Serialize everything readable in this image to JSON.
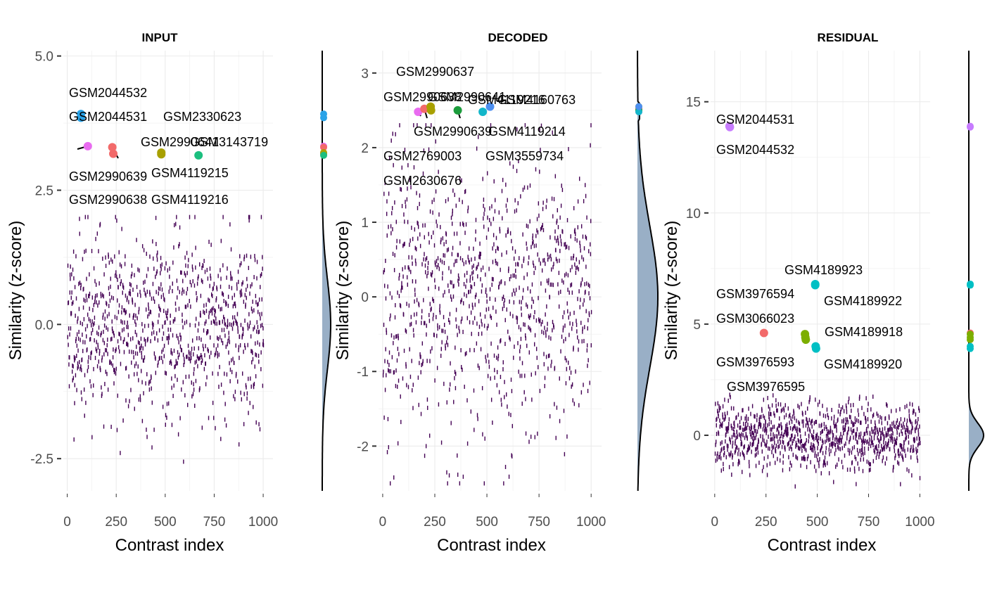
{
  "chart_data": [
    {
      "type": "scatter",
      "title": "INPUT",
      "xlabel": "Contrast index",
      "ylabel": "Similarity (z-score)",
      "xlim": [
        -20,
        1050
      ],
      "ylim": [
        -3.1,
        5.1
      ],
      "x_ticks": [
        0,
        250,
        500,
        750,
        1000
      ],
      "x_tick_labels": [
        "0",
        "250",
        "500",
        "750",
        "1000"
      ],
      "y_ticks": [
        -2.5,
        0,
        2.5,
        5
      ],
      "y_tick_labels": [
        "-2.5",
        "0.0",
        "2.5",
        "5.0"
      ],
      "grid": true,
      "background": {
        "n": 1000,
        "seed": 11,
        "ymean": 0.0,
        "ysd": 0.85,
        "ymin": -2.7,
        "ymax": 2.0,
        "color": "#440154"
      },
      "highlights": [
        {
          "x": 70,
          "y": 3.85,
          "color": "#2aa3e8",
          "label": "GSM2044532"
        },
        {
          "x": 70,
          "y": 3.92,
          "color": "#2aa3e8",
          "label": "GSM2044531"
        },
        {
          "x": 105,
          "y": 3.32,
          "color": "#e96bf0",
          "label": "GSM2330623"
        },
        {
          "x": 230,
          "y": 3.3,
          "color": "#f26a6a",
          "label": "GSM2990638"
        },
        {
          "x": 235,
          "y": 3.18,
          "color": "#f26a6a",
          "label": "GSM2990639"
        },
        {
          "x": 480,
          "y": 3.2,
          "color": "#a8a000",
          "label": "GSM4119216"
        },
        {
          "x": 480,
          "y": 3.17,
          "color": "#a8a000",
          "label": "GSM4119215"
        },
        {
          "x": 670,
          "y": 3.15,
          "color": "#1cbf7f",
          "label": "GSM3143719"
        }
      ],
      "extra_labels": [
        "GSM2990641"
      ],
      "density": {
        "mean": 0.0,
        "sd": 0.85
      }
    },
    {
      "type": "scatter",
      "title": "DECODED",
      "xlabel": "Contrast index",
      "ylabel": "Similarity (z-score)",
      "xlim": [
        -20,
        1050
      ],
      "ylim": [
        -2.6,
        3.3
      ],
      "x_ticks": [
        0,
        250,
        500,
        750,
        1000
      ],
      "x_tick_labels": [
        "0",
        "250",
        "500",
        "750",
        "1000"
      ],
      "y_ticks": [
        -2,
        -1,
        0,
        1,
        2,
        3
      ],
      "y_tick_labels": [
        "-2",
        "-1",
        "0",
        "1",
        "2",
        "3"
      ],
      "grid": true,
      "background": {
        "n": 1000,
        "seed": 23,
        "ymean": 0.0,
        "ysd": 0.95,
        "ymin": -2.5,
        "ymax": 2.3,
        "color": "#440154"
      },
      "highlights": [
        {
          "x": 170,
          "y": 2.48,
          "color": "#e96bf0",
          "label": "GSM2630676"
        },
        {
          "x": 200,
          "y": 2.52,
          "color": "#f26a6a",
          "label": "GSM2769003"
        },
        {
          "x": 230,
          "y": 2.55,
          "color": "#a8a000",
          "label": "GSM2990637"
        },
        {
          "x": 232,
          "y": 2.5,
          "color": "#a8a000",
          "label": "GSM2990638"
        },
        {
          "x": 360,
          "y": 2.5,
          "color": "#1c9c3c",
          "label": "GSM3559734"
        },
        {
          "x": 480,
          "y": 2.48,
          "color": "#12b6c9",
          "label": "GSM4119214"
        },
        {
          "x": 515,
          "y": 2.55,
          "color": "#4d8ff0",
          "label": "GSM4160763"
        }
      ],
      "extra_labels": [
        "GSM2990639",
        "GSM2990641",
        "GSM4119216"
      ],
      "density": {
        "mean": 0.0,
        "sd": 0.95,
        "cap": [
          2.5,
          0.04
        ]
      }
    },
    {
      "type": "scatter",
      "title": "RESIDUAL",
      "xlabel": "Contrast index",
      "ylabel": "Similarity (z-score)",
      "xlim": [
        -20,
        1050
      ],
      "ylim": [
        -2.5,
        17.3
      ],
      "x_ticks": [
        0,
        250,
        500,
        750,
        1000
      ],
      "x_tick_labels": [
        "0",
        "250",
        "500",
        "750",
        "1000"
      ],
      "y_ticks": [
        0,
        5,
        10,
        15
      ],
      "y_tick_labels": [
        "0",
        "5",
        "10",
        "15"
      ],
      "grid": true,
      "background": {
        "n": 1000,
        "seed": 37,
        "ymean": 0.0,
        "ysd": 0.75,
        "ymin": -2.3,
        "ymax": 2.8,
        "color": "#440154"
      },
      "highlights": [
        {
          "x": 72,
          "y": 13.9,
          "color": "#c77cff",
          "label": "GSM2044531"
        },
        {
          "x": 74,
          "y": 13.86,
          "color": "#c77cff",
          "label": "GSM2044532"
        },
        {
          "x": 240,
          "y": 4.6,
          "color": "#f26a6a",
          "label": "GSM3066023"
        },
        {
          "x": 440,
          "y": 4.55,
          "color": "#7cae00",
          "label": "GSM3976594"
        },
        {
          "x": 442,
          "y": 4.4,
          "color": "#7cae00",
          "label": "GSM3976593"
        },
        {
          "x": 444,
          "y": 4.3,
          "color": "#7cae00",
          "label": "GSM3976595"
        },
        {
          "x": 490,
          "y": 6.8,
          "color": "#00bfc4",
          "label": "GSM4189923"
        },
        {
          "x": 490,
          "y": 6.75,
          "color": "#00bfc4",
          "label": "GSM4189922"
        },
        {
          "x": 492,
          "y": 4.0,
          "color": "#00bfc4",
          "label": "GSM4189918"
        },
        {
          "x": 494,
          "y": 3.9,
          "color": "#00bfc4",
          "label": "GSM4189920"
        }
      ],
      "extra_labels": [],
      "density": {
        "mean": 0.0,
        "sd": 0.55
      }
    }
  ]
}
